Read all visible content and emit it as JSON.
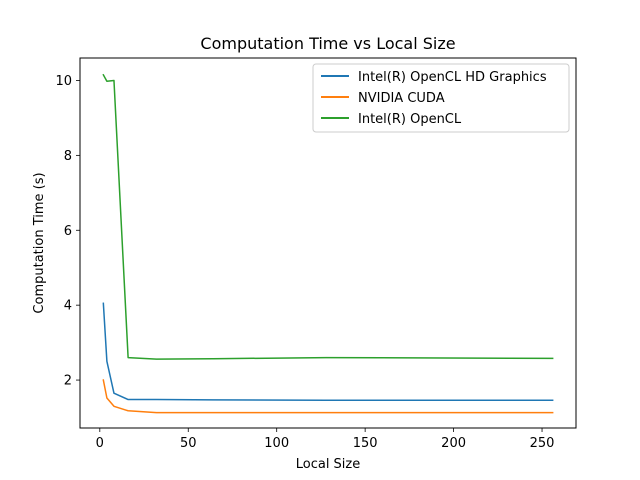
{
  "chart_data": {
    "type": "line",
    "title": "Computation Time vs Local Size",
    "xlabel": "Local Size",
    "ylabel": "Computation Time (s)",
    "xlim": [
      -11.2,
      269.2
    ],
    "ylim": [
      0.72,
      10.6
    ],
    "xticks": [
      0,
      50,
      100,
      150,
      200,
      250
    ],
    "yticks": [
      2,
      4,
      6,
      8,
      10
    ],
    "grid": false,
    "legend_position": "top-right",
    "series": [
      {
        "name": "Intel(R) OpenCL HD Graphics",
        "color": "#1f77b4",
        "x": [
          2,
          4,
          8,
          16,
          32,
          64,
          128,
          256
        ],
        "y": [
          4.05,
          2.5,
          1.65,
          1.48,
          1.48,
          1.47,
          1.46,
          1.46
        ]
      },
      {
        "name": "NVIDIA CUDA",
        "color": "#ff7f0e",
        "x": [
          2,
          4,
          8,
          16,
          32,
          64,
          128,
          256
        ],
        "y": [
          2.0,
          1.52,
          1.3,
          1.18,
          1.13,
          1.13,
          1.13,
          1.13
        ]
      },
      {
        "name": "Intel(R) OpenCL",
        "color": "#2ca02c",
        "x": [
          2,
          4,
          8,
          16,
          32,
          64,
          128,
          256
        ],
        "y": [
          10.15,
          9.98,
          10.0,
          2.6,
          2.56,
          2.57,
          2.6,
          2.58
        ]
      }
    ]
  }
}
